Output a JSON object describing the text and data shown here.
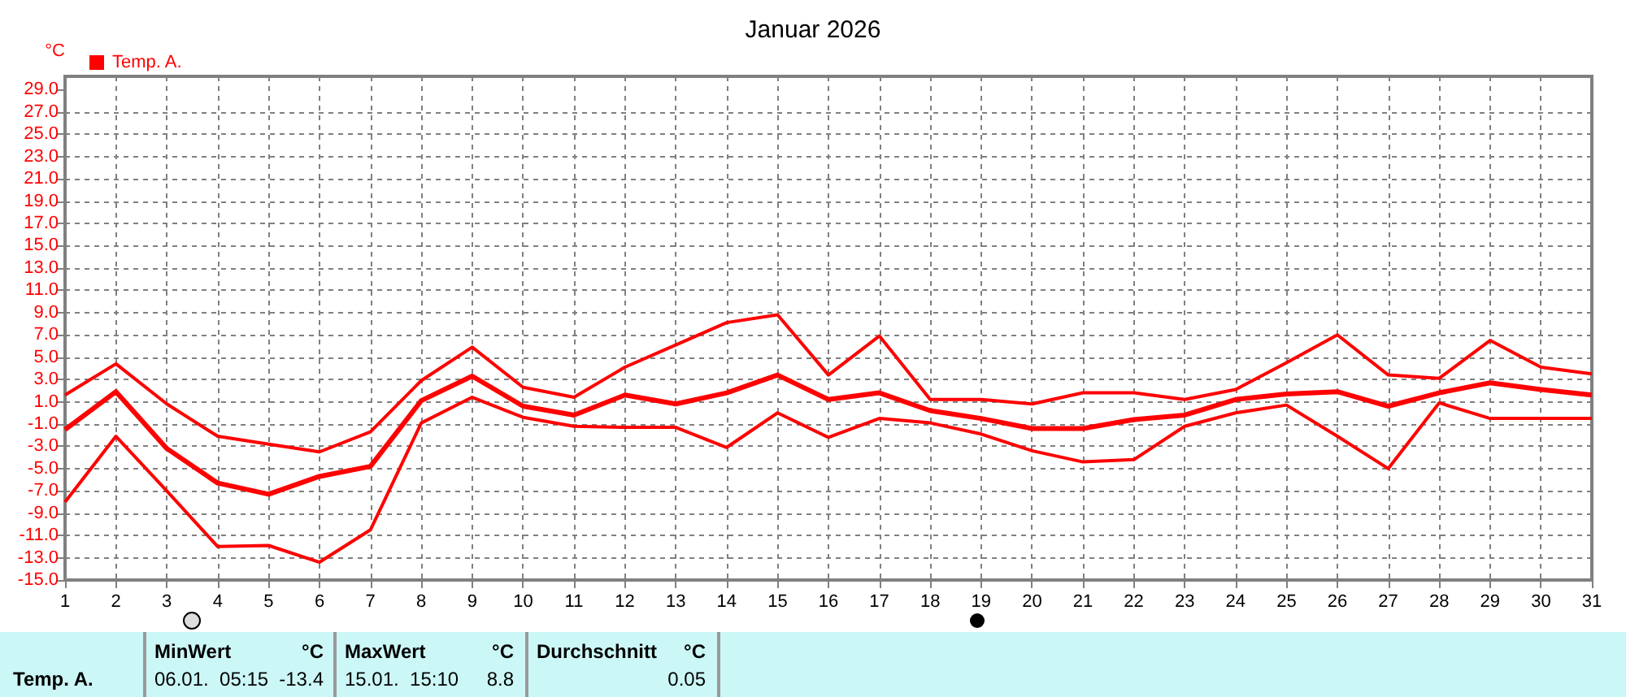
{
  "chart_data": {
    "type": "line",
    "title": "Januar 2026",
    "ylabel": "°C",
    "legend": "top left",
    "grid": true,
    "marker": "none",
    "line_style": "solid",
    "x": [
      1,
      2,
      3,
      4,
      5,
      6,
      7,
      8,
      9,
      10,
      11,
      12,
      13,
      14,
      15,
      16,
      17,
      18,
      19,
      20,
      21,
      22,
      23,
      24,
      25,
      26,
      27,
      28,
      29,
      30,
      31
    ],
    "xlim": [
      1,
      31
    ],
    "xticks": [
      1,
      2,
      3,
      4,
      5,
      6,
      7,
      8,
      9,
      10,
      11,
      12,
      13,
      14,
      15,
      16,
      17,
      18,
      19,
      20,
      21,
      22,
      23,
      24,
      25,
      26,
      27,
      28,
      29,
      30,
      31
    ],
    "ylim": [
      -15,
      30.2
    ],
    "yticks": [
      {
        "value": -15,
        "label": "-15.0"
      },
      {
        "value": -13,
        "label": "-13.0"
      },
      {
        "value": -11,
        "label": "-11.0"
      },
      {
        "value": -9,
        "label": "-9.0"
      },
      {
        "value": -7,
        "label": "-7.0"
      },
      {
        "value": -5,
        "label": "-5.0"
      },
      {
        "value": -3,
        "label": "-3.0"
      },
      {
        "value": -1,
        "label": "-1.0"
      },
      {
        "value": 1,
        "label": "1.0"
      },
      {
        "value": 3,
        "label": "3.0"
      },
      {
        "value": 5,
        "label": "5.0"
      },
      {
        "value": 7,
        "label": "7.0"
      },
      {
        "value": 9,
        "label": "9.0"
      },
      {
        "value": 11,
        "label": "11.0"
      },
      {
        "value": 13,
        "label": "13.0"
      },
      {
        "value": 15,
        "label": "15.0"
      },
      {
        "value": 17,
        "label": "17.0"
      },
      {
        "value": 19,
        "label": "19.0"
      },
      {
        "value": 21,
        "label": "21.0"
      },
      {
        "value": 23,
        "label": "23.0"
      },
      {
        "value": 25,
        "label": "25.0"
      },
      {
        "value": 27,
        "label": "27.0"
      },
      {
        "value": 29,
        "label": "29.0"
      }
    ],
    "series": [
      {
        "color": "#ff0000",
        "values": [
          1.6,
          4.4,
          0.8,
          -2.1,
          -2.8,
          -3.5,
          -1.7,
          2.9,
          5.9,
          2.3,
          1.4,
          4.1,
          6.1,
          8.1,
          8.8,
          3.4,
          6.9,
          1.2,
          1.2,
          0.8,
          1.8,
          1.8,
          1.2,
          2.1,
          4.5,
          7.0,
          3.4,
          3.1,
          6.5,
          4.1,
          3.5
        ]
      },
      {
        "name": "Temp. A.",
        "color": "#ff0000",
        "values": [
          -1.5,
          1.9,
          -3.2,
          -6.3,
          -7.3,
          -5.7,
          -4.8,
          1.1,
          3.3,
          0.6,
          -0.2,
          1.6,
          0.8,
          1.8,
          3.4,
          1.2,
          1.8,
          0.2,
          -0.5,
          -1.4,
          -1.4,
          -0.6,
          -0.2,
          1.2,
          1.7,
          1.9,
          0.6,
          1.8,
          2.7,
          2.1,
          1.6
        ]
      },
      {
        "color": "#ff0000",
        "values": [
          -8.0,
          -2.1,
          -7.0,
          -12.0,
          -11.9,
          -13.4,
          -10.5,
          -0.9,
          1.4,
          -0.4,
          -1.2,
          -1.3,
          -1.3,
          -3.1,
          0.0,
          -2.2,
          -0.5,
          -0.9,
          -1.9,
          -3.4,
          -4.4,
          -4.2,
          -1.2,
          0.0,
          0.7,
          -2.1,
          -5.0,
          0.9,
          -0.5,
          -0.5,
          -0.5
        ]
      }
    ],
    "annotations": [
      "Temp. A.",
      "MinWert",
      "°C",
      "06.01.  05:15",
      "-13.4",
      "MaxWert",
      "°C",
      "15.01.  15:10",
      "8.8",
      "Durchschnitt",
      "°C",
      "0.05"
    ]
  }
}
